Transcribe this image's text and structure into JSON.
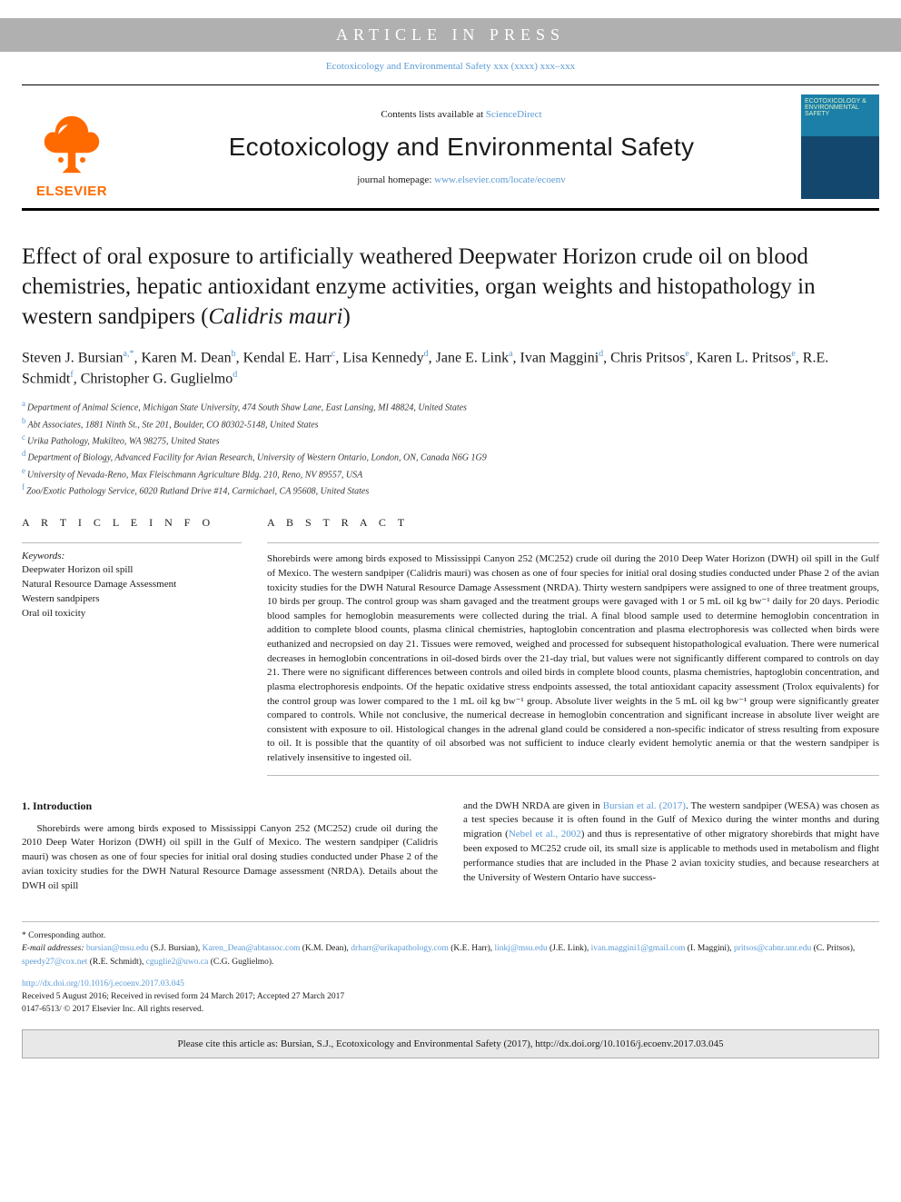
{
  "banner": {
    "text": "ARTICLE IN PRESS"
  },
  "journal_ref": "Ecotoxicology and Environmental Safety xxx (xxxx) xxx–xxx",
  "header": {
    "contents_prefix": "Contents lists available at ",
    "contents_link": "ScienceDirect",
    "journal_title": "Ecotoxicology and Environmental Safety",
    "homepage_prefix": "journal homepage: ",
    "homepage_link": "www.elsevier.com/locate/ecoenv",
    "elsevier_text": "ELSEVIER",
    "cover_text": "ECOTOXICOLOGY & ENVIRONMENTAL SAFETY",
    "elsevier_logo_fill": "#ff6a00",
    "cover_bg_top": "#1b7fa8",
    "cover_bg_bottom": "#13476e"
  },
  "title": "Effect of oral exposure to artificially weathered Deepwater Horizon crude oil on blood chemistries, hepatic antioxidant enzyme activities, organ weights and histopathology in western sandpipers (Calidris mauri)",
  "title_italic_tail": "Calidris mauri",
  "authors": [
    {
      "name": "Steven J. Bursian",
      "sup": "a,*"
    },
    {
      "name": "Karen M. Dean",
      "sup": "b"
    },
    {
      "name": "Kendal E. Harr",
      "sup": "c"
    },
    {
      "name": "Lisa Kennedy",
      "sup": "d"
    },
    {
      "name": "Jane E. Link",
      "sup": "a"
    },
    {
      "name": "Ivan Maggini",
      "sup": "d"
    },
    {
      "name": "Chris Pritsos",
      "sup": "e"
    },
    {
      "name": "Karen L. Pritsos",
      "sup": "e"
    },
    {
      "name": "R.E. Schmidt",
      "sup": "f"
    },
    {
      "name": "Christopher G. Guglielmo",
      "sup": "d"
    }
  ],
  "affiliations": [
    {
      "sup": "a",
      "text": "Department of Animal Science, Michigan State University, 474 South Shaw Lane, East Lansing, MI 48824, United States"
    },
    {
      "sup": "b",
      "text": "Abt Associates, 1881 Ninth St., Ste 201, Boulder, CO 80302-5148, United States"
    },
    {
      "sup": "c",
      "text": "Urika Pathology, Mukilteo, WA 98275, United States"
    },
    {
      "sup": "d",
      "text": "Department of Biology, Advanced Facility for Avian Research, University of Western Ontario, London, ON, Canada N6G 1G9"
    },
    {
      "sup": "e",
      "text": "University of Nevada-Reno, Max Fleischmann Agriculture Bldg. 210, Reno, NV 89557, USA"
    },
    {
      "sup": "f",
      "text": "Zoo/Exotic Pathology Service, 6020 Rutland Drive #14, Carmichael, CA 95608, United States"
    }
  ],
  "article_info_head": "A R T I C L E  I N F O",
  "keywords_label": "Keywords:",
  "keywords": [
    "Deepwater Horizon oil spill",
    "Natural Resource Damage Assessment",
    "Western sandpipers",
    "Oral oil toxicity"
  ],
  "abstract_head": "A B S T R A C T",
  "abstract": "Shorebirds were among birds exposed to Mississippi Canyon 252 (MC252) crude oil during the 2010 Deep Water Horizon (DWH) oil spill in the Gulf of Mexico. The western sandpiper (Calidris mauri) was chosen as one of four species for initial oral dosing studies conducted under Phase 2 of the avian toxicity studies for the DWH Natural Resource Damage Assessment (NRDA). Thirty western sandpipers were assigned to one of three treatment groups, 10 birds per group. The control group was sham gavaged and the treatment groups were gavaged with 1 or 5 mL oil kg bw⁻¹ daily for 20 days. Periodic blood samples for hemoglobin measurements were collected during the trial. A final blood sample used to determine hemoglobin concentration in addition to complete blood counts, plasma clinical chemistries, haptoglobin concentration and plasma electrophoresis was collected when birds were euthanized and necropsied on day 21. Tissues were removed, weighed and processed for subsequent histopathological evaluation. There were numerical decreases in hemoglobin concentrations in oil-dosed birds over the 21-day trial, but values were not significantly different compared to controls on day 21. There were no significant differences between controls and oiled birds in complete blood counts, plasma chemistries, haptoglobin concentration, and plasma electrophoresis endpoints. Of the hepatic oxidative stress endpoints assessed, the total antioxidant capacity assessment (Trolox equivalents) for the control group was lower compared to the 1 mL oil kg bw⁻¹ group. Absolute liver weights in the 5 mL oil kg bw⁻¹ group were significantly greater compared to controls. While not conclusive, the numerical decrease in hemoglobin concentration and significant increase in absolute liver weight are consistent with exposure to oil. Histological changes in the adrenal gland could be considered a non-specific indicator of stress resulting from exposure to oil. It is possible that the quantity of oil absorbed was not sufficient to induce clearly evident hemolytic anemia or that the western sandpiper is relatively insensitive to ingested oil.",
  "intro": {
    "heading": "1. Introduction",
    "col1": "Shorebirds were among birds exposed to Mississippi Canyon 252 (MC252) crude oil during the 2010 Deep Water Horizon (DWH) oil spill in the Gulf of Mexico. The western sandpiper (Calidris mauri) was chosen as one of four species for initial oral dosing studies conducted under Phase 2 of the avian toxicity studies for the DWH Natural Resource Damage assessment (NRDA). Details about the DWH oil spill",
    "col2_pre": "and the DWH NRDA are given in ",
    "col2_link1": "Bursian et al. (2017)",
    "col2_mid": ". The western sandpiper (WESA) was chosen as a test species because it is often found in the Gulf of Mexico during the winter months and during migration (",
    "col2_link2": "Nebel et al., 2002",
    "col2_post": ") and thus is representative of other migratory shorebirds that might have been exposed to MC252 crude oil, its small size is applicable to methods used in metabolism and flight performance studies that are included in the Phase 2 avian toxicity studies, and because researchers at the University of Western Ontario have success-"
  },
  "footnotes": {
    "corresponding": "* Corresponding author.",
    "email_label": "E-mail addresses: ",
    "emails": [
      {
        "addr": "bursian@msu.edu",
        "who": "(S.J. Bursian)"
      },
      {
        "addr": "Karen_Dean@abtassoc.com",
        "who": "(K.M. Dean)"
      },
      {
        "addr": "drharr@urikapathology.com",
        "who": "(K.E. Harr)"
      },
      {
        "addr": "linkj@msu.edu",
        "who": "(J.E. Link)"
      },
      {
        "addr": "ivan.maggini1@gmail.com",
        "who": "(I. Maggini)"
      },
      {
        "addr": "pritsos@cabnr.unr.edu",
        "who": "(C. Pritsos)"
      },
      {
        "addr": "speedy27@cox.net",
        "who": "(R.E. Schmidt)"
      },
      {
        "addr": "cguglie2@uwo.ca",
        "who": "(C.G. Guglielmo)"
      }
    ]
  },
  "doi": {
    "link": "http://dx.doi.org/10.1016/j.ecoenv.2017.03.045",
    "received": "Received 5 August 2016; Received in revised form 24 March 2017; Accepted 27 March 2017",
    "issn": "0147-6513/ © 2017 Elsevier Inc. All rights reserved."
  },
  "cite_box": "Please cite this article as: Bursian, S.J., Ecotoxicology and Environmental Safety (2017), http://dx.doi.org/10.1016/j.ecoenv.2017.03.045",
  "colors": {
    "accent_link": "#5B9BD5",
    "banner_bg": "#b0b0b0",
    "elsevier_orange": "#ff6a00",
    "cite_bg": "#e8e8e8"
  }
}
